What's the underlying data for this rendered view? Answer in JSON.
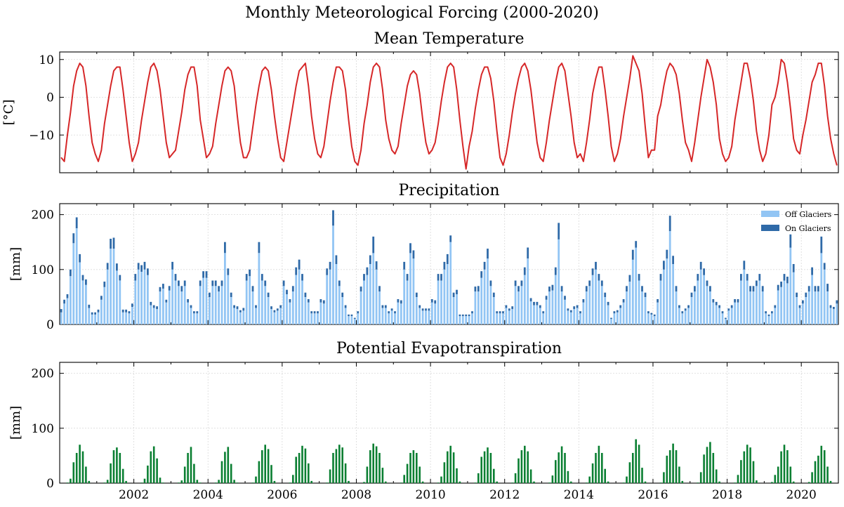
{
  "figure": {
    "title": "Monthly Meteorological Forcing (2000-2020)"
  },
  "colors": {
    "temperature": "#d62728",
    "off_glaciers": "#92c5f4",
    "on_glaciers": "#2f6aa8",
    "pet": "#0a7f32",
    "grid": "#d9d9d9"
  },
  "chart_data": [
    {
      "type": "line",
      "title": "Mean Temperature",
      "xlabel": "",
      "ylabel": "[°C]",
      "xlim": [
        2000.0,
        2021.0
      ],
      "ylim": [
        -20,
        12
      ],
      "yticks": [
        -10,
        0,
        10
      ],
      "ytick_labels": [
        "−10",
        "0",
        "10"
      ],
      "grid": true,
      "series": [
        {
          "name": "Mean Temperature",
          "start_year": 2000,
          "frequency": "monthly",
          "values": [
            -16,
            -17,
            -10,
            -4,
            3,
            7,
            9,
            8,
            3,
            -5,
            -12,
            -15,
            -17,
            -14,
            -7,
            -2,
            3,
            7,
            8,
            8,
            2,
            -5,
            -12,
            -17,
            -15,
            -12,
            -6,
            -1,
            4,
            8,
            9,
            7,
            2,
            -5,
            -12,
            -16,
            -15,
            -14,
            -9,
            -4,
            2,
            6,
            8,
            8,
            3,
            -6,
            -11,
            -16,
            -15,
            -13,
            -7,
            -2,
            3,
            7,
            8,
            7,
            3,
            -5,
            -12,
            -16,
            -16,
            -14,
            -8,
            -2,
            3,
            7,
            8,
            7,
            2,
            -5,
            -11,
            -16,
            -17,
            -12,
            -7,
            -2,
            3,
            7,
            8,
            9,
            3,
            -5,
            -11,
            -15,
            -16,
            -13,
            -7,
            -1,
            4,
            8,
            8,
            7,
            2,
            -6,
            -13,
            -17,
            -18,
            -14,
            -7,
            -2,
            4,
            8,
            9,
            8,
            2,
            -6,
            -11,
            -14,
            -15,
            -13,
            -7,
            -2,
            3,
            6,
            7,
            6,
            1,
            -6,
            -12,
            -15,
            -14,
            -12,
            -7,
            -1,
            4,
            8,
            9,
            8,
            2,
            -6,
            -13,
            -19,
            -13,
            -9,
            -3,
            2,
            6,
            8,
            8,
            5,
            -1,
            -9,
            -16,
            -18,
            -15,
            -10,
            -4,
            1,
            5,
            8,
            9,
            7,
            2,
            -5,
            -12,
            -16,
            -17,
            -12,
            -6,
            -1,
            4,
            8,
            9,
            7,
            1,
            -5,
            -12,
            -16,
            -15,
            -17,
            -12,
            -6,
            1,
            5,
            8,
            8,
            2,
            -5,
            -13,
            -17,
            -15,
            -11,
            -5,
            0,
            5,
            11,
            9,
            7,
            1,
            -8,
            -16,
            -14,
            -14,
            -5,
            -2,
            3,
            7,
            9,
            8,
            6,
            1,
            -6,
            -12,
            -14,
            -17,
            -12,
            -6,
            0,
            5,
            10,
            8,
            4,
            -2,
            -11,
            -15,
            -17,
            -16,
            -13,
            -6,
            -1,
            4,
            9,
            9,
            5,
            -1,
            -9,
            -14,
            -17,
            -15,
            -10,
            -2,
            0,
            4,
            10,
            9,
            4,
            -3,
            -11,
            -14,
            -15,
            -10,
            -6,
            -1,
            4,
            6,
            9,
            9,
            3,
            -5,
            -11,
            -15,
            -18
          ]
        }
      ]
    },
    {
      "type": "bar",
      "stacked": true,
      "title": "Precipitation",
      "xlabel": "",
      "ylabel": "[mm]",
      "xlim": [
        2000.0,
        2021.0
      ],
      "ylim": [
        0,
        220
      ],
      "yticks": [
        0,
        100,
        200
      ],
      "ytick_labels": [
        "0",
        "100",
        "200"
      ],
      "grid": true,
      "legend": {
        "placement": "top-right",
        "entries": [
          "Off Glaciers",
          "On Glaciers"
        ]
      },
      "series": [
        {
          "name": "Off Glaciers",
          "start_year": 2000,
          "frequency": "monthly",
          "values": [
            22,
            38,
            48,
            88,
            148,
            175,
            113,
            80,
            72,
            30,
            18,
            18,
            22,
            45,
            68,
            100,
            138,
            138,
            98,
            80,
            22,
            22,
            20,
            32,
            80,
            100,
            96,
            100,
            90,
            35,
            30,
            28,
            60,
            65,
            40,
            62,
            100,
            80,
            70,
            60,
            70,
            40,
            30,
            20,
            20,
            70,
            85,
            85,
            50,
            70,
            70,
            60,
            70,
            130,
            90,
            50,
            30,
            28,
            22,
            25,
            80,
            88,
            60,
            30,
            130,
            80,
            70,
            50,
            28,
            22,
            25,
            30,
            70,
            55,
            40,
            60,
            90,
            100,
            80,
            50,
            40,
            20,
            20,
            20,
            40,
            38,
            90,
            100,
            180,
            110,
            70,
            50,
            30,
            15,
            15,
            10,
            20,
            60,
            80,
            90,
            110,
            130,
            100,
            60,
            30,
            30,
            20,
            25,
            20,
            40,
            38,
            100,
            80,
            130,
            120,
            50,
            30,
            25,
            25,
            25,
            40,
            38,
            80,
            80,
            100,
            110,
            150,
            50,
            55,
            15,
            15,
            15,
            15,
            20,
            60,
            60,
            85,
            100,
            120,
            70,
            50,
            20,
            20,
            20,
            30,
            25,
            28,
            70,
            60,
            70,
            90,
            120,
            42,
            35,
            35,
            30,
            20,
            45,
            60,
            62,
            90,
            155,
            60,
            45,
            25,
            22,
            28,
            30,
            20,
            40,
            60,
            70,
            90,
            100,
            80,
            70,
            50,
            35,
            10,
            20,
            22,
            30,
            40,
            60,
            78,
            118,
            140,
            80,
            60,
            50,
            20,
            18,
            15,
            40,
            80,
            100,
            120,
            170,
            110,
            60,
            30,
            20,
            25,
            30,
            50,
            60,
            80,
            100,
            90,
            70,
            60,
            40,
            35,
            30,
            20,
            10,
            25,
            30,
            40,
            40,
            80,
            100,
            80,
            60,
            60,
            70,
            80,
            60,
            20,
            15,
            20,
            30,
            62,
            68,
            80,
            75,
            140,
            95,
            50,
            30,
            38,
            50,
            60,
            90,
            60,
            60,
            130,
            100,
            60,
            30,
            28,
            38
          ]
        },
        {
          "name": "On Glaciers",
          "start_year": 2000,
          "frequency": "monthly",
          "values": [
            6,
            7,
            7,
            12,
            18,
            20,
            15,
            10,
            10,
            6,
            4,
            4,
            5,
            7,
            10,
            12,
            18,
            20,
            13,
            10,
            5,
            5,
            4,
            6,
            12,
            12,
            12,
            14,
            12,
            6,
            5,
            5,
            8,
            9,
            5,
            8,
            14,
            12,
            10,
            10,
            10,
            6,
            5,
            4,
            4,
            10,
            12,
            12,
            8,
            10,
            10,
            10,
            10,
            20,
            12,
            8,
            5,
            5,
            4,
            5,
            12,
            12,
            10,
            5,
            20,
            12,
            10,
            8,
            5,
            4,
            4,
            5,
            10,
            8,
            6,
            10,
            14,
            18,
            12,
            8,
            6,
            4,
            4,
            4,
            6,
            6,
            12,
            14,
            28,
            16,
            10,
            8,
            5,
            3,
            3,
            2,
            4,
            9,
            12,
            14,
            16,
            30,
            15,
            10,
            5,
            5,
            4,
            4,
            4,
            6,
            6,
            14,
            12,
            18,
            15,
            8,
            5,
            4,
            4,
            4,
            6,
            6,
            12,
            12,
            14,
            18,
            12,
            8,
            8,
            3,
            3,
            3,
            3,
            4,
            9,
            10,
            12,
            14,
            18,
            10,
            8,
            4,
            4,
            4,
            5,
            4,
            5,
            10,
            10,
            10,
            14,
            20,
            6,
            6,
            6,
            5,
            4,
            7,
            9,
            10,
            14,
            30,
            10,
            7,
            4,
            4,
            5,
            5,
            4,
            6,
            10,
            10,
            12,
            14,
            12,
            10,
            8,
            6,
            2,
            4,
            4,
            5,
            6,
            10,
            12,
            18,
            12,
            12,
            10,
            8,
            4,
            3,
            3,
            6,
            12,
            16,
            16,
            28,
            15,
            10,
            5,
            4,
            4,
            5,
            8,
            10,
            12,
            14,
            12,
            10,
            10,
            6,
            6,
            5,
            4,
            2,
            4,
            5,
            6,
            6,
            12,
            16,
            12,
            10,
            10,
            10,
            12,
            10,
            4,
            3,
            4,
            5,
            10,
            10,
            12,
            12,
            24,
            15,
            8,
            5,
            6,
            8,
            10,
            14,
            10,
            10,
            30,
            12,
            14,
            5,
            4,
            6
          ]
        }
      ]
    },
    {
      "type": "bar",
      "title": "Potential Evapotranspiration",
      "xlabel": "",
      "ylabel": "[mm]",
      "xlim": [
        2000.0,
        2021.0
      ],
      "ylim": [
        0,
        220
      ],
      "yticks": [
        0,
        100,
        200
      ],
      "ytick_labels": [
        "0",
        "100",
        "200"
      ],
      "xticks": [
        2002,
        2004,
        2006,
        2008,
        2010,
        2012,
        2014,
        2016,
        2018,
        2020
      ],
      "xtick_labels": [
        "2002",
        "2004",
        "2006",
        "2008",
        "2010",
        "2012",
        "2014",
        "2016",
        "2018",
        "2020"
      ],
      "grid": true,
      "series": [
        {
          "name": "Potential Evapotranspiration",
          "start_year": 2000,
          "frequency": "monthly",
          "values": [
            0,
            0,
            1,
            8,
            38,
            55,
            70,
            58,
            30,
            4,
            0,
            0,
            0,
            0,
            1,
            6,
            36,
            60,
            65,
            55,
            26,
            4,
            0,
            0,
            0,
            0,
            1,
            8,
            32,
            58,
            67,
            45,
            10,
            1,
            0,
            0,
            0,
            0,
            1,
            5,
            30,
            55,
            66,
            35,
            6,
            1,
            0,
            0,
            0,
            0,
            1,
            6,
            40,
            57,
            66,
            35,
            6,
            1,
            0,
            0,
            0,
            0,
            1,
            12,
            40,
            60,
            70,
            62,
            33,
            4,
            0,
            0,
            0,
            0,
            1,
            15,
            48,
            55,
            68,
            63,
            36,
            4,
            0,
            0,
            0,
            0,
            1,
            25,
            55,
            62,
            70,
            65,
            36,
            4,
            0,
            0,
            0,
            0,
            2,
            30,
            60,
            72,
            67,
            55,
            28,
            3,
            0,
            0,
            0,
            0,
            1,
            15,
            35,
            55,
            60,
            55,
            30,
            3,
            0,
            0,
            0,
            0,
            1,
            12,
            38,
            58,
            68,
            56,
            27,
            3,
            0,
            0,
            0,
            0,
            1,
            18,
            48,
            58,
            65,
            55,
            26,
            3,
            0,
            0,
            0,
            0,
            1,
            18,
            45,
            60,
            68,
            58,
            25,
            3,
            0,
            0,
            0,
            0,
            1,
            14,
            42,
            56,
            67,
            55,
            22,
            3,
            0,
            0,
            0,
            0,
            1,
            12,
            36,
            55,
            68,
            55,
            26,
            3,
            0,
            0,
            0,
            0,
            1,
            12,
            38,
            55,
            80,
            70,
            28,
            3,
            0,
            0,
            0,
            0,
            1,
            20,
            50,
            60,
            72,
            60,
            30,
            4,
            0,
            0,
            0,
            0,
            1,
            20,
            52,
            66,
            75,
            55,
            25,
            3,
            0,
            0,
            0,
            0,
            1,
            15,
            42,
            58,
            70,
            65,
            40,
            5,
            0,
            0,
            0,
            0,
            2,
            15,
            30,
            58,
            70,
            60,
            30,
            3,
            0,
            0,
            0,
            0,
            2,
            20,
            40,
            50,
            68,
            60,
            30,
            4,
            0,
            0
          ]
        }
      ]
    }
  ]
}
